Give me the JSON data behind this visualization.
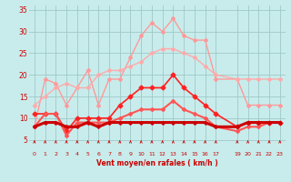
{
  "xlabel": "Vent moyen/en rafales ( km/h )",
  "background_color": "#c8ecec",
  "grid_color": "#a0c8c8",
  "xlim": [
    -0.5,
    23.5
  ],
  "ylim": [
    4.5,
    36
  ],
  "yticks": [
    5,
    10,
    15,
    20,
    25,
    30,
    35
  ],
  "xticks": [
    0,
    1,
    2,
    3,
    4,
    5,
    6,
    7,
    8,
    9,
    10,
    11,
    12,
    13,
    14,
    15,
    16,
    17,
    19,
    20,
    21,
    22,
    23
  ],
  "series": [
    {
      "x": [
        0,
        1,
        2,
        3,
        4,
        5,
        6,
        7,
        8,
        9,
        10,
        11,
        12,
        13,
        14,
        15,
        16,
        17,
        19,
        20,
        21,
        22,
        23
      ],
      "y": [
        8,
        19,
        18,
        13,
        17,
        21,
        13,
        19,
        19,
        24,
        29,
        32,
        30,
        33,
        29,
        28,
        28,
        19,
        19,
        13,
        13,
        13,
        13
      ],
      "color": "#ff9999",
      "linewidth": 1.0,
      "marker": "D",
      "markersize": 2.0
    },
    {
      "x": [
        0,
        1,
        2,
        3,
        4,
        5,
        6,
        7,
        8,
        9,
        10,
        11,
        12,
        13,
        14,
        15,
        16,
        17,
        19,
        20,
        21,
        22,
        23
      ],
      "y": [
        13,
        15,
        17,
        18,
        17,
        17,
        20,
        21,
        21,
        22,
        23,
        25,
        26,
        26,
        25,
        24,
        22,
        20,
        19,
        19,
        19,
        19,
        19
      ],
      "color": "#ffaaaa",
      "linewidth": 1.0,
      "marker": "D",
      "markersize": 2.0
    },
    {
      "x": [
        0,
        1,
        2,
        3,
        4,
        5,
        6,
        7,
        8,
        9,
        10,
        11,
        12,
        13,
        14,
        15,
        16,
        17,
        19,
        20,
        21,
        22,
        23
      ],
      "y": [
        11,
        11,
        11,
        7,
        10,
        10,
        10,
        10,
        13,
        15,
        17,
        17,
        17,
        20,
        17,
        15,
        13,
        11,
        8,
        9,
        9,
        9,
        9
      ],
      "color": "#ff2222",
      "linewidth": 1.2,
      "marker": "D",
      "markersize": 2.5
    },
    {
      "x": [
        0,
        1,
        2,
        3,
        4,
        5,
        6,
        7,
        8,
        9,
        10,
        11,
        12,
        13,
        14,
        15,
        16,
        17,
        19,
        20,
        21,
        22,
        23
      ],
      "y": [
        8,
        11,
        11,
        6,
        9,
        9,
        9,
        9,
        10,
        11,
        12,
        12,
        12,
        14,
        12,
        11,
        10,
        8,
        7,
        8,
        8,
        9,
        9
      ],
      "color": "#ff5555",
      "linewidth": 1.5,
      "marker": "D",
      "markersize": 2.0
    },
    {
      "x": [
        0,
        1,
        2,
        3,
        4,
        5,
        6,
        7,
        8,
        9,
        10,
        11,
        12,
        13,
        14,
        15,
        16,
        17,
        19,
        20,
        21,
        22,
        23
      ],
      "y": [
        8,
        9,
        9,
        8,
        8,
        9,
        8,
        9,
        9,
        9,
        9,
        9,
        9,
        9,
        9,
        9,
        9,
        8,
        8,
        9,
        9,
        9,
        9
      ],
      "color": "#cc0000",
      "linewidth": 2.2,
      "marker": "D",
      "markersize": 1.8
    }
  ]
}
